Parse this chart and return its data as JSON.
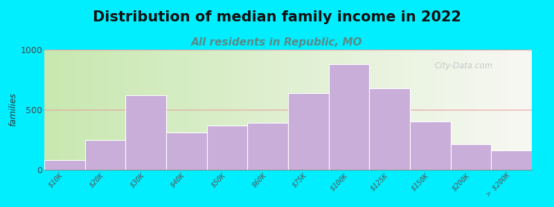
{
  "title": "Distribution of median family income in 2022",
  "subtitle": "All residents in Republic, MO",
  "ylabel": "families",
  "categories": [
    "$10K",
    "$20K",
    "$30K",
    "$40K",
    "$50K",
    "$60K",
    "$75K",
    "$100K",
    "$125K",
    "$150K",
    "$200K",
    "> $200K"
  ],
  "values": [
    80,
    250,
    620,
    310,
    370,
    390,
    640,
    880,
    680,
    400,
    210,
    160
  ],
  "bar_color": "#c8aed8",
  "bar_edge_color": "#ffffff",
  "ylim": [
    0,
    1000
  ],
  "yticks": [
    0,
    500,
    1000
  ],
  "bg_outer": "#00eeff",
  "title_fontsize": 15,
  "title_color": "#111111",
  "subtitle_fontsize": 11,
  "subtitle_color": "#5a8a88",
  "watermark": "City-Data.com",
  "ylabel_fontsize": 9,
  "tick_fontsize": 7.5,
  "ytick_fontsize": 9,
  "grid_color": "#e8a0a0",
  "bg_gradient_colors": [
    "#cce8b8",
    "#e8f4e0",
    "#f2f6ec",
    "#f8f8f5",
    "#fafafa"
  ],
  "bg_gradient_stops": [
    0.0,
    0.2,
    0.4,
    0.6,
    1.0
  ]
}
